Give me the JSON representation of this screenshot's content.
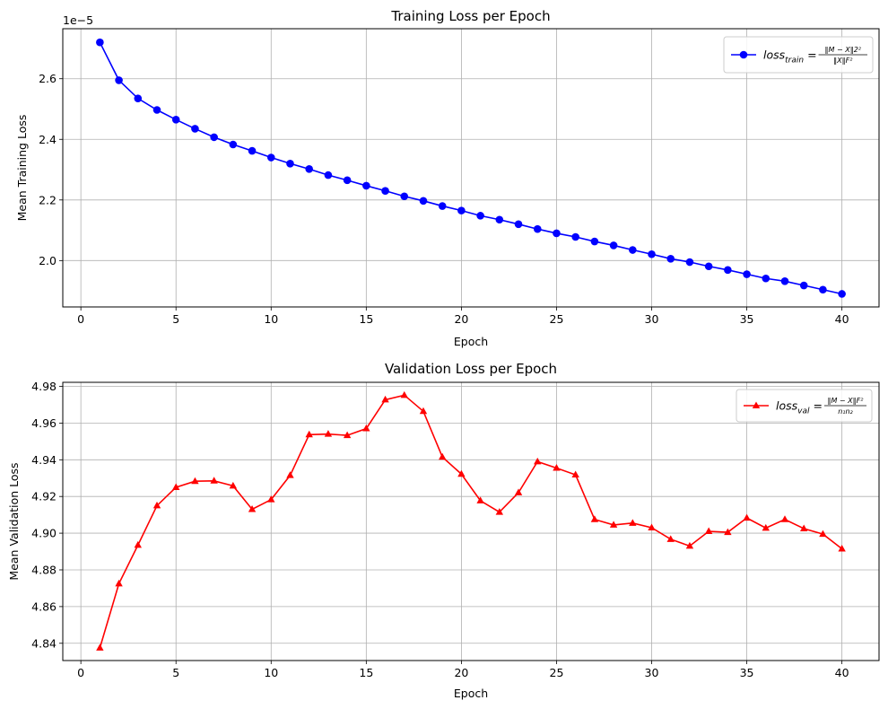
{
  "chart_data": [
    {
      "type": "line",
      "title": "Training Loss per Epoch",
      "xlabel": "Epoch",
      "ylabel": "Mean Training Loss",
      "y_offset_label": "1e−5",
      "xlim": [
        -0.95,
        41.95
      ],
      "ylim": [
        1.847,
        2.765
      ],
      "xticks": [
        0,
        5,
        10,
        15,
        20,
        25,
        30,
        35,
        40
      ],
      "yticks": [
        2.0,
        2.2,
        2.4,
        2.6
      ],
      "ytick_labels": [
        "2.0",
        "2.2",
        "2.4",
        "2.6"
      ],
      "grid": true,
      "legend_position": "top-right",
      "series": [
        {
          "name": "loss_train = ||M−X||2² / ||X||F²",
          "legend": {
            "base": "loss",
            "sub": "train",
            "eq": " = ",
            "num": "‖M − X‖2²",
            "den": "‖X‖F²"
          },
          "color": "#0000ff",
          "marker": "circle",
          "x": [
            1,
            2,
            3,
            4,
            5,
            6,
            7,
            8,
            9,
            10,
            11,
            12,
            13,
            14,
            15,
            16,
            17,
            18,
            19,
            20,
            21,
            22,
            23,
            24,
            25,
            26,
            27,
            28,
            29,
            30,
            31,
            32,
            33,
            34,
            35,
            36,
            37,
            38,
            39,
            40
          ],
          "y": [
            2.72,
            2.595,
            2.535,
            2.497,
            2.465,
            2.435,
            2.407,
            2.383,
            2.362,
            2.34,
            2.32,
            2.302,
            2.282,
            2.265,
            2.247,
            2.23,
            2.212,
            2.197,
            2.18,
            2.165,
            2.148,
            2.135,
            2.12,
            2.104,
            2.09,
            2.078,
            2.063,
            2.05,
            2.035,
            2.021,
            2.006,
            1.995,
            1.981,
            1.969,
            1.955,
            1.941,
            1.932,
            1.918,
            1.904,
            1.89
          ]
        }
      ]
    },
    {
      "type": "line",
      "title": "Validation Loss per Epoch",
      "xlabel": "Epoch",
      "ylabel": "Mean Validation Loss",
      "xlim": [
        -0.95,
        41.95
      ],
      "ylim": [
        4.8306,
        4.9822
      ],
      "xticks": [
        0,
        5,
        10,
        15,
        20,
        25,
        30,
        35,
        40
      ],
      "yticks": [
        4.84,
        4.86,
        4.88,
        4.9,
        4.92,
        4.94,
        4.96,
        4.98
      ],
      "ytick_labels": [
        "4.84",
        "4.86",
        "4.88",
        "4.90",
        "4.92",
        "4.94",
        "4.96",
        "4.98"
      ],
      "grid": true,
      "legend_position": "top-right",
      "series": [
        {
          "name": "loss_val = ||M−X||F² / n1n2",
          "legend": {
            "base": "loss",
            "sub": "val",
            "eq": " = ",
            "num": "‖M − X‖F²",
            "den": "n₁n₂"
          },
          "color": "#ff0000",
          "marker": "triangle",
          "x": [
            1,
            2,
            3,
            4,
            5,
            6,
            7,
            8,
            9,
            10,
            11,
            12,
            13,
            14,
            15,
            16,
            17,
            18,
            19,
            20,
            21,
            22,
            23,
            24,
            25,
            26,
            27,
            28,
            29,
            30,
            31,
            32,
            33,
            34,
            35,
            36,
            37,
            38,
            39,
            40
          ],
          "y": [
            4.8375,
            4.8725,
            4.8935,
            4.915,
            4.925,
            4.9283,
            4.9285,
            4.9258,
            4.913,
            4.9183,
            4.9315,
            4.9537,
            4.954,
            4.9533,
            4.957,
            4.9727,
            4.9752,
            4.9664,
            4.9415,
            4.9322,
            4.9177,
            4.9115,
            4.9221,
            4.939,
            4.9355,
            4.9318,
            4.9075,
            4.9045,
            4.9055,
            4.903,
            4.8967,
            4.893,
            4.901,
            4.9005,
            4.9083,
            4.9028,
            4.9075,
            4.9025,
            4.8995,
            4.8915
          ]
        }
      ]
    }
  ]
}
